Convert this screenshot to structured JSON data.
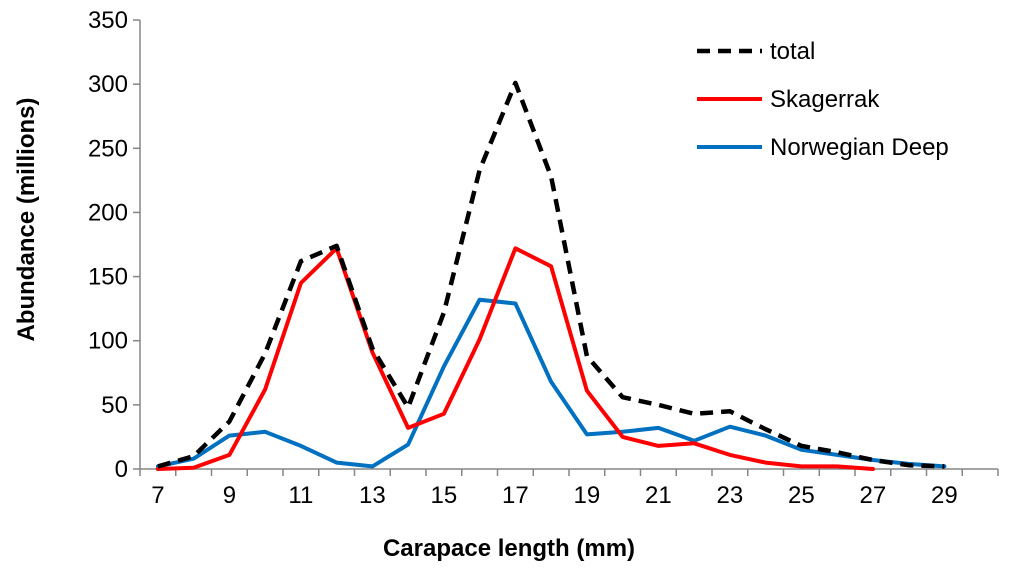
{
  "chart_data": {
    "type": "line",
    "title": "",
    "xlabel": "Carapace length (mm)",
    "ylabel": "Abundance (millions)",
    "xlim": [
      7,
      29
    ],
    "ylim": [
      0,
      350
    ],
    "x_ticks": [
      7,
      9,
      11,
      13,
      15,
      17,
      19,
      21,
      23,
      25,
      27,
      29
    ],
    "y_ticks": [
      0,
      50,
      100,
      150,
      200,
      250,
      300,
      350
    ],
    "grid": false,
    "legend_position": "top-right",
    "series": [
      {
        "name": "total",
        "color": "#000000",
        "dash": "dashed",
        "x": [
          7,
          8,
          9,
          10,
          11,
          12,
          13,
          14,
          15,
          16,
          17,
          18,
          19,
          20,
          21,
          22,
          23,
          24,
          25,
          26,
          27,
          28,
          29
        ],
        "y": [
          2,
          10,
          37,
          90,
          162,
          174,
          94,
          48,
          122,
          233,
          301,
          228,
          88,
          56,
          50,
          43,
          45,
          31,
          18,
          13,
          7,
          3,
          2
        ]
      },
      {
        "name": "Skagerrak",
        "color": "#FF0000",
        "dash": "solid",
        "x": [
          7,
          8,
          9,
          10,
          11,
          12,
          13,
          14,
          15,
          16,
          17,
          18,
          19,
          20,
          21,
          22,
          23,
          24,
          25,
          26,
          27
        ],
        "y": [
          0,
          1,
          11,
          62,
          145,
          172,
          91,
          32,
          43,
          101,
          172,
          158,
          61,
          25,
          18,
          20,
          11,
          5,
          2,
          2,
          0
        ]
      },
      {
        "name": "Norwegian Deep",
        "color": "#0070C0",
        "dash": "solid",
        "x": [
          7,
          8,
          9,
          10,
          11,
          12,
          13,
          14,
          15,
          16,
          17,
          18,
          19,
          20,
          21,
          22,
          23,
          24,
          25,
          26,
          27,
          28,
          29
        ],
        "y": [
          2,
          8,
          26,
          29,
          18,
          5,
          2,
          19,
          80,
          132,
          129,
          68,
          27,
          29,
          32,
          22,
          33,
          26,
          15,
          11,
          7,
          4,
          2
        ]
      }
    ]
  }
}
